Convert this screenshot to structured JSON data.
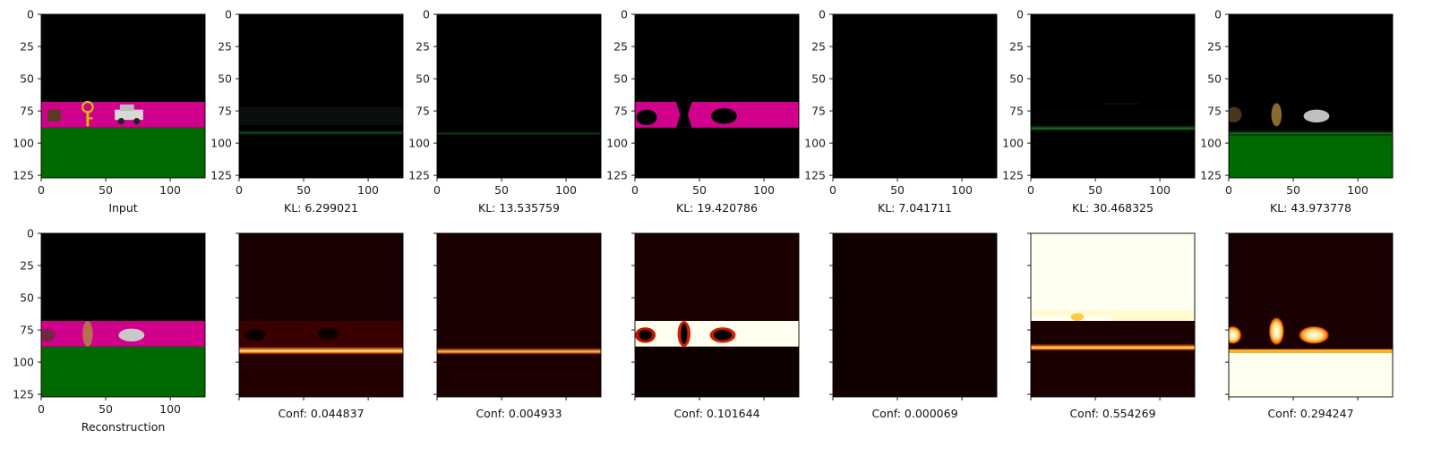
{
  "chart_data": {
    "type": "image-grid",
    "x_ticks": [
      "0",
      "50",
      "100"
    ],
    "y_ticks": [
      "0",
      "25",
      "50",
      "75",
      "100",
      "125"
    ],
    "colors": {
      "black": "#000000",
      "magenta": "#d1008c",
      "green": "#006900",
      "heat_dark": "#1a0000",
      "heat_mid": "#c81400",
      "heat_hot": "#ff9a00",
      "heat_white": "#fffff0"
    },
    "top_row": [
      {
        "caption": "Input",
        "kind": "input"
      },
      {
        "caption": "KL: 6.299021",
        "kind": "faint-green-line"
      },
      {
        "caption": "KL: 13.535759",
        "kind": "faint-green-line-2"
      },
      {
        "caption": "KL: 19.420786",
        "kind": "magenta-band"
      },
      {
        "caption": "KL: 7.041711",
        "kind": "black"
      },
      {
        "caption": "KL: 30.468325",
        "kind": "green-line"
      },
      {
        "caption": "KL: 43.973778",
        "kind": "objects-green"
      }
    ],
    "bottom_row": [
      {
        "caption": "Reconstruction",
        "kind": "recon"
      },
      {
        "caption": "Conf: 0.044837",
        "kind": "heat-line-dim"
      },
      {
        "caption": "Conf: 0.004933",
        "kind": "heat-line-dimmer"
      },
      {
        "caption": "Conf: 0.101644",
        "kind": "heat-band"
      },
      {
        "caption": "Conf: 0.000069",
        "kind": "heat-black"
      },
      {
        "caption": "Conf: 0.554269",
        "kind": "heat-top-white"
      },
      {
        "caption": "Conf: 0.294247",
        "kind": "heat-bottom-white"
      }
    ]
  }
}
